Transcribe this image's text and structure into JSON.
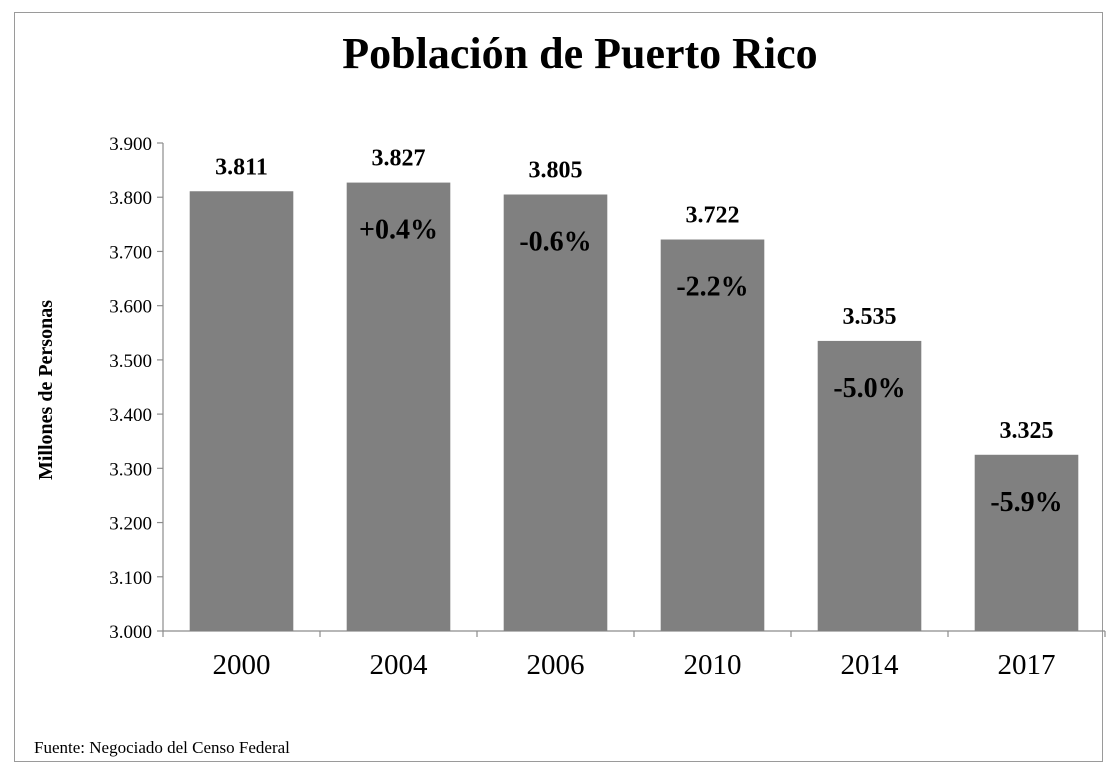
{
  "chart_data": {
    "type": "bar",
    "title": "Población de Puerto Rico",
    "ylabel": "Millones de Personas",
    "xlabel": "",
    "categories": [
      "2000",
      "2004",
      "2006",
      "2010",
      "2014",
      "2017"
    ],
    "values": [
      3.811,
      3.827,
      3.805,
      3.722,
      3.535,
      3.325
    ],
    "value_labels": [
      "3.811",
      "3.827",
      "3.805",
      "3.722",
      "3.535",
      "3.325"
    ],
    "change_labels": [
      "",
      "+0.4%",
      "-0.6%",
      "-2.2%",
      "-5.0%",
      "-5.9%"
    ],
    "ylim": [
      3.0,
      3.9
    ],
    "yticks": [
      3.0,
      3.1,
      3.2,
      3.3,
      3.4,
      3.5,
      3.6,
      3.7,
      3.8,
      3.9
    ],
    "ytick_labels": [
      "3.000",
      "3.100",
      "3.200",
      "3.300",
      "3.400",
      "3.500",
      "3.600",
      "3.700",
      "3.800",
      "3.900"
    ],
    "bar_color": "#808080",
    "grid": false,
    "legend": "none",
    "source": "Fuente: Negociado del Censo Federal"
  }
}
